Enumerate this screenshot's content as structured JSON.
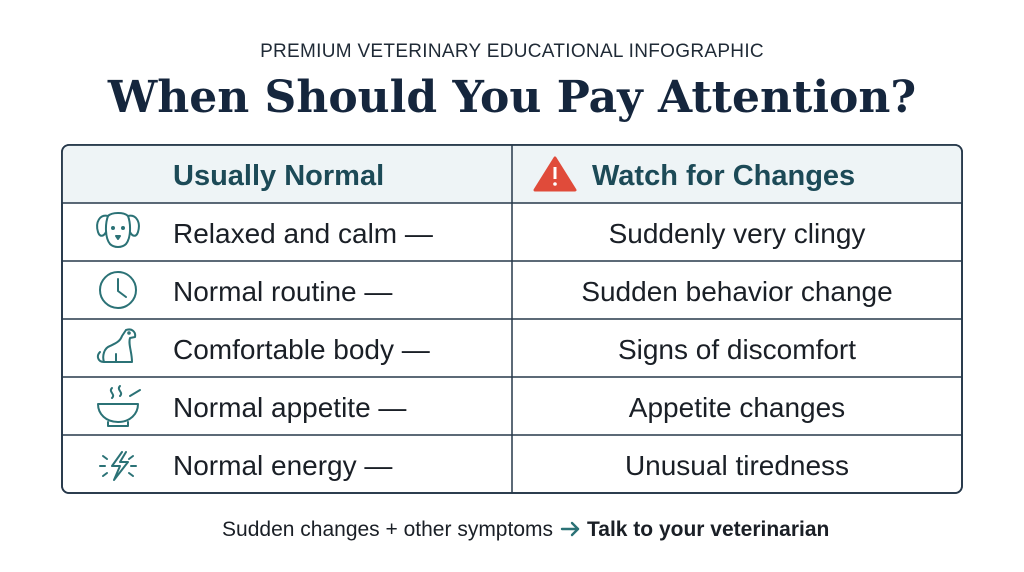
{
  "header": {
    "kicker": "PREMIUM VETERINARY EDUCATIONAL INFOGRAPHIC",
    "title": "When Should You Pay Attention?"
  },
  "table": {
    "headers": [
      "Usually Normal",
      "Watch for Changes"
    ],
    "rows": [
      [
        "Relaxed and calm —",
        "Suddenly very clingy"
      ],
      [
        "Normal routine —",
        "Sudden behavior change"
      ],
      [
        "Comfortable body —",
        "Signs of discomfort"
      ],
      [
        "Normal appetite —",
        "Appetite changes"
      ],
      [
        "Normal energy —",
        "Unusual tiredness"
      ]
    ]
  },
  "footer": {
    "condition": "Sudden changes + other symptoms",
    "action": "Talk to your veterinarian"
  }
}
